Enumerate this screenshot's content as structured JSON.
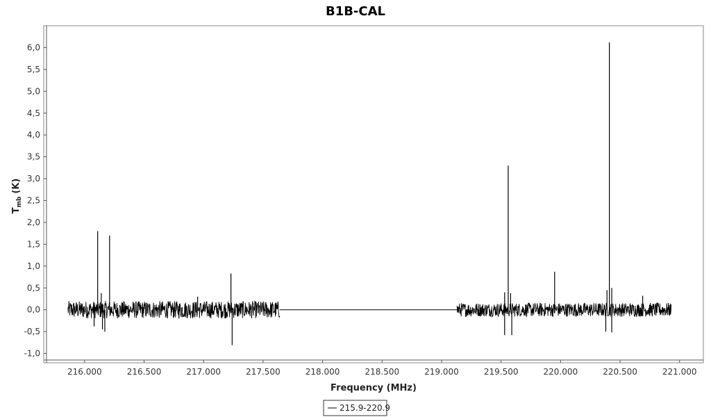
{
  "chart_data": {
    "type": "line",
    "title": "B1B-CAL",
    "xlabel": "Frequency (MHz)",
    "ylabel_main": "T",
    "ylabel_sub": "mb",
    "ylabel_unit": "(K)",
    "xlim": [
      215.68,
      221.2
    ],
    "ylim": [
      -1.15,
      6.5
    ],
    "x_ticks": [
      216.0,
      216.5,
      217.0,
      217.5,
      218.0,
      218.5,
      219.0,
      219.5,
      220.0,
      220.5,
      221.0
    ],
    "x_tick_labels": [
      "216.000",
      "216.500",
      "217.000",
      "217.500",
      "218.000",
      "218.500",
      "219.000",
      "219.500",
      "220.000",
      "220.500",
      "221.000"
    ],
    "y_ticks": [
      -1.0,
      -0.5,
      0.0,
      0.5,
      1.0,
      1.5,
      2.0,
      2.5,
      3.0,
      3.5,
      4.0,
      4.5,
      5.0,
      5.5,
      6.0
    ],
    "y_tick_labels": [
      "-1,0",
      "-0,5",
      "0,0",
      "0,5",
      "1,0",
      "1,5",
      "2,0",
      "2,5",
      "3,0",
      "3,5",
      "4,0",
      "4,5",
      "5,0",
      "5,5",
      "6,0"
    ],
    "grid": false,
    "legend_position": "bottom-center",
    "series": [
      {
        "name": "215.9-220.9",
        "color": "#000000",
        "noise_bands": [
          {
            "x_start": 215.86,
            "x_end": 217.64,
            "noise_amplitude": 0.2
          },
          {
            "x_start": 219.13,
            "x_end": 220.93,
            "noise_amplitude": 0.16
          }
        ],
        "flat_segments": [
          {
            "x_start": 217.64,
            "x_end": 219.13,
            "y": 0.0
          }
        ],
        "peaks": [
          {
            "x": 216.11,
            "y": 1.8
          },
          {
            "x": 216.14,
            "y": 0.38
          },
          {
            "x": 216.21,
            "y": 1.7
          },
          {
            "x": 216.95,
            "y": 0.3
          },
          {
            "x": 217.23,
            "y": 0.83
          },
          {
            "x": 219.53,
            "y": 0.4
          },
          {
            "x": 219.56,
            "y": 3.3
          },
          {
            "x": 219.58,
            "y": 0.38
          },
          {
            "x": 219.95,
            "y": 0.87
          },
          {
            "x": 220.39,
            "y": 0.45
          },
          {
            "x": 220.41,
            "y": 6.12
          },
          {
            "x": 220.43,
            "y": 0.5
          },
          {
            "x": 220.69,
            "y": 0.32
          }
        ],
        "dips": [
          {
            "x": 216.08,
            "y": -0.38
          },
          {
            "x": 216.15,
            "y": -0.45
          },
          {
            "x": 216.17,
            "y": -0.5
          },
          {
            "x": 217.24,
            "y": -0.81
          },
          {
            "x": 219.53,
            "y": -0.58
          },
          {
            "x": 219.59,
            "y": -0.58
          },
          {
            "x": 220.38,
            "y": -0.5
          },
          {
            "x": 220.43,
            "y": -0.52
          }
        ]
      }
    ]
  }
}
